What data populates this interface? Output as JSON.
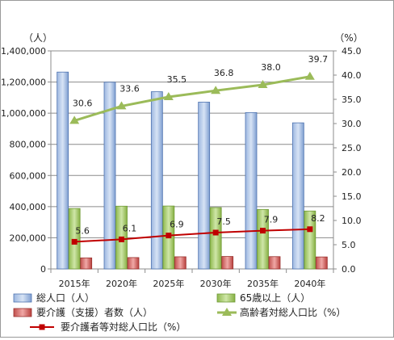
{
  "chart_data": {
    "type": "bar",
    "categories": [
      "2015年",
      "2020年",
      "2025年",
      "2030年",
      "2035年",
      "2040年"
    ],
    "y_left_unit": "（人）",
    "y_right_unit": "（%）",
    "y_left_ticks": [
      "0",
      "200,000",
      "400,000",
      "600,000",
      "800,000",
      "1,000,000",
      "1,200,000",
      "1,400,000"
    ],
    "y_right_ticks": [
      "0.0",
      "5.0",
      "10.0",
      "15.0",
      "20.0",
      "25.0",
      "30.0",
      "35.0",
      "40.0",
      "45.0"
    ],
    "ylim_left": [
      0,
      1400000
    ],
    "ylim_right": [
      0,
      45
    ],
    "grid": true,
    "legend_position": "bottom",
    "series": [
      {
        "name": "総人口（人）",
        "type": "bar",
        "axis": "left",
        "color": "#4f81bd",
        "values": [
          1264000,
          1199000,
          1138000,
          1071000,
          1004000,
          938000
        ]
      },
      {
        "name": "65歳以上（人）",
        "type": "bar",
        "axis": "left",
        "color": "#9bbb59",
        "values": [
          388000,
          403000,
          404000,
          394000,
          382000,
          372000
        ]
      },
      {
        "name": "要介護（支援）者数（人）",
        "type": "bar",
        "axis": "left",
        "color": "#c0504d",
        "values": [
          71000,
          73000,
          78000,
          80000,
          79000,
          77000
        ]
      },
      {
        "name": "高齢者対総人口比（%）",
        "type": "line",
        "axis": "right",
        "color": "#9bbb59",
        "values": [
          30.6,
          33.6,
          35.5,
          36.8,
          38.0,
          39.7
        ],
        "labels": [
          "30.6",
          "33.6",
          "35.5",
          "36.8",
          "38.0",
          "39.7"
        ]
      },
      {
        "name": "要介護者等対総人口比（%）",
        "type": "line",
        "axis": "right",
        "color": "#c00000",
        "values": [
          5.6,
          6.1,
          6.9,
          7.5,
          7.9,
          8.2
        ],
        "labels": [
          "5.6",
          "6.1",
          "6.9",
          "7.5",
          "7.9",
          "8.2"
        ]
      }
    ]
  }
}
